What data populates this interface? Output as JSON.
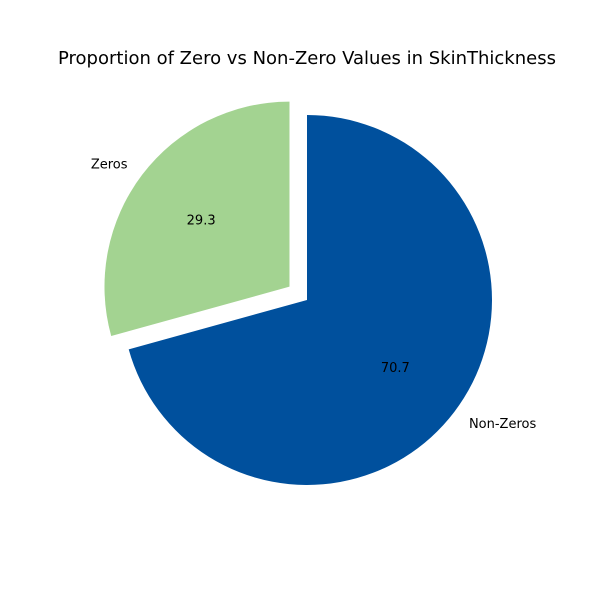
{
  "chart_data": {
    "type": "pie",
    "title": "Proportion of Zero vs Non-Zero Values in SkinThickness",
    "slices": [
      {
        "label": "Zeros",
        "value": 29.3,
        "display": "29.3",
        "color": "#a3d391",
        "explode": true
      },
      {
        "label": "Non-Zeros",
        "value": 70.7,
        "display": "70.7",
        "color": "#00509d",
        "explode": false
      }
    ],
    "legend": "none"
  }
}
